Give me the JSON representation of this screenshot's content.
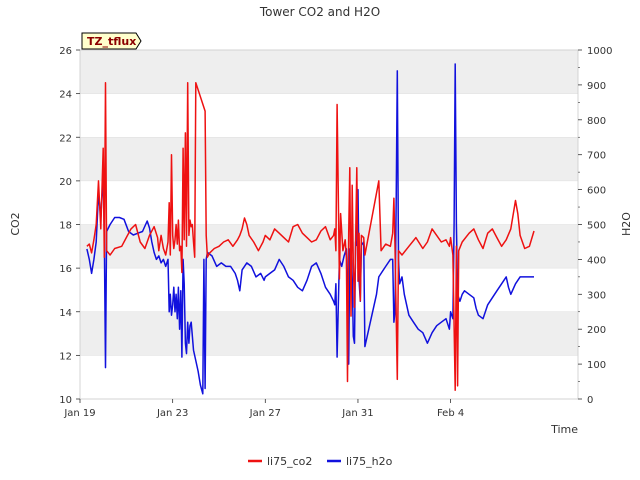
{
  "chart_data": {
    "type": "line",
    "title": "Tower CO2 and H2O",
    "badge": "TZ_tflux",
    "xlabel": "Time",
    "ylabel_left": "CO2",
    "ylabel_right": "H2O",
    "xlim": [
      19,
      40.5
    ],
    "ylim_left": [
      10,
      26
    ],
    "ylim_right": [
      0,
      1000
    ],
    "x_ticks": [
      {
        "value": 19,
        "label": "Jan 19"
      },
      {
        "value": 23,
        "label": "Jan 23"
      },
      {
        "value": 27,
        "label": "Jan 27"
      },
      {
        "value": 31,
        "label": "Jan 31"
      },
      {
        "value": 35,
        "label": "Feb 4"
      }
    ],
    "y_ticks_left": [
      10,
      12,
      14,
      16,
      18,
      20,
      22,
      24,
      26
    ],
    "y_ticks_right": [
      0,
      100,
      200,
      300,
      400,
      500,
      600,
      700,
      800,
      900,
      1000
    ],
    "grid": true,
    "legend_position": "bottom",
    "colors": {
      "co2": "#ee1111",
      "h2o": "#1111dd",
      "band": "#eeeeee",
      "grid": "#dddddd"
    },
    "series": [
      {
        "name": "li75_co2",
        "axis": "left",
        "points": [
          [
            19.3,
            17.0
          ],
          [
            19.4,
            17.1
          ],
          [
            19.5,
            16.7
          ],
          [
            19.6,
            17.3
          ],
          [
            19.7,
            18.0
          ],
          [
            19.8,
            20.0
          ],
          [
            19.9,
            17.8
          ],
          [
            20.0,
            21.5
          ],
          [
            20.05,
            16.5
          ],
          [
            20.1,
            24.5
          ],
          [
            20.15,
            16.8
          ],
          [
            20.3,
            16.6
          ],
          [
            20.5,
            16.9
          ],
          [
            20.8,
            17.0
          ],
          [
            21.0,
            17.4
          ],
          [
            21.2,
            17.8
          ],
          [
            21.4,
            18.0
          ],
          [
            21.6,
            17.2
          ],
          [
            21.8,
            16.9
          ],
          [
            22.0,
            17.5
          ],
          [
            22.2,
            17.9
          ],
          [
            22.35,
            17.4
          ],
          [
            22.4,
            16.8
          ],
          [
            22.5,
            17.5
          ],
          [
            22.6,
            16.9
          ],
          [
            22.7,
            16.6
          ],
          [
            22.8,
            17.2
          ],
          [
            22.85,
            19.0
          ],
          [
            22.9,
            16.6
          ],
          [
            22.95,
            21.2
          ],
          [
            23.0,
            17.5
          ],
          [
            23.05,
            16.9
          ],
          [
            23.1,
            17.3
          ],
          [
            23.15,
            18.0
          ],
          [
            23.2,
            17.1
          ],
          [
            23.25,
            18.2
          ],
          [
            23.3,
            16.8
          ],
          [
            23.35,
            17.0
          ],
          [
            23.4,
            15.8
          ],
          [
            23.45,
            21.5
          ],
          [
            23.5,
            17.3
          ],
          [
            23.55,
            22.2
          ],
          [
            23.6,
            17.0
          ],
          [
            23.65,
            24.5
          ],
          [
            23.7,
            17.5
          ],
          [
            23.75,
            18.2
          ],
          [
            23.8,
            17.9
          ],
          [
            23.85,
            18.0
          ],
          [
            23.9,
            17.2
          ],
          [
            23.95,
            16.5
          ],
          [
            24.0,
            24.5
          ],
          [
            24.4,
            23.2
          ],
          [
            24.45,
            17.5
          ],
          [
            24.5,
            16.5
          ],
          [
            24.6,
            16.7
          ],
          [
            24.8,
            16.9
          ],
          [
            25.0,
            17.0
          ],
          [
            25.2,
            17.2
          ],
          [
            25.4,
            17.3
          ],
          [
            25.6,
            17.0
          ],
          [
            25.8,
            17.3
          ],
          [
            25.9,
            17.5
          ],
          [
            26.0,
            17.8
          ],
          [
            26.1,
            18.3
          ],
          [
            26.2,
            18.0
          ],
          [
            26.3,
            17.5
          ],
          [
            26.5,
            17.2
          ],
          [
            26.7,
            16.8
          ],
          [
            26.9,
            17.2
          ],
          [
            27.0,
            17.5
          ],
          [
            27.2,
            17.3
          ],
          [
            27.4,
            17.8
          ],
          [
            27.6,
            17.6
          ],
          [
            27.8,
            17.4
          ],
          [
            28.0,
            17.2
          ],
          [
            28.2,
            17.9
          ],
          [
            28.4,
            18.0
          ],
          [
            28.6,
            17.6
          ],
          [
            28.8,
            17.4
          ],
          [
            29.0,
            17.2
          ],
          [
            29.2,
            17.3
          ],
          [
            29.4,
            17.7
          ],
          [
            29.6,
            17.9
          ],
          [
            29.8,
            17.3
          ],
          [
            29.95,
            17.5
          ],
          [
            30.0,
            17.8
          ],
          [
            30.05,
            16.8
          ],
          [
            30.1,
            23.5
          ],
          [
            30.2,
            15.5
          ],
          [
            30.25,
            18.5
          ],
          [
            30.35,
            16.8
          ],
          [
            30.45,
            17.3
          ],
          [
            30.5,
            16.5
          ],
          [
            30.55,
            10.8
          ],
          [
            30.6,
            17.6
          ],
          [
            30.65,
            20.6
          ],
          [
            30.7,
            13.8
          ],
          [
            30.75,
            19.8
          ],
          [
            30.8,
            16.2
          ],
          [
            30.85,
            14.2
          ],
          [
            30.9,
            17.2
          ],
          [
            30.95,
            20.6
          ],
          [
            31.0,
            15.4
          ],
          [
            31.05,
            17.6
          ],
          [
            31.1,
            14.5
          ],
          [
            31.15,
            17.5
          ],
          [
            31.25,
            17.4
          ],
          [
            31.3,
            16.6
          ],
          [
            31.9,
            20.0
          ],
          [
            32.0,
            16.8
          ],
          [
            32.2,
            17.1
          ],
          [
            32.4,
            17.0
          ],
          [
            32.5,
            17.6
          ],
          [
            32.55,
            19.2
          ],
          [
            32.6,
            17.0
          ],
          [
            32.7,
            10.9
          ],
          [
            32.75,
            16.8
          ],
          [
            32.9,
            16.6
          ],
          [
            33.2,
            17.0
          ],
          [
            33.5,
            17.4
          ],
          [
            33.8,
            16.9
          ],
          [
            34.0,
            17.2
          ],
          [
            34.2,
            17.8
          ],
          [
            34.4,
            17.5
          ],
          [
            34.6,
            17.2
          ],
          [
            34.8,
            17.3
          ],
          [
            34.95,
            17.0
          ],
          [
            35.0,
            17.4
          ],
          [
            35.1,
            16.6
          ],
          [
            35.2,
            10.4
          ],
          [
            35.25,
            17.0
          ],
          [
            35.3,
            10.6
          ],
          [
            35.35,
            16.8
          ],
          [
            35.5,
            17.2
          ],
          [
            35.8,
            17.6
          ],
          [
            36.0,
            17.8
          ],
          [
            36.2,
            17.3
          ],
          [
            36.4,
            16.9
          ],
          [
            36.6,
            17.6
          ],
          [
            36.8,
            17.8
          ],
          [
            37.0,
            17.4
          ],
          [
            37.2,
            17.0
          ],
          [
            37.4,
            17.3
          ],
          [
            37.6,
            17.8
          ],
          [
            37.8,
            19.1
          ],
          [
            37.9,
            18.5
          ],
          [
            38.0,
            17.5
          ],
          [
            38.2,
            16.9
          ],
          [
            38.4,
            17.0
          ],
          [
            38.6,
            17.7
          ]
        ]
      },
      {
        "name": "li75_h2o",
        "axis": "right",
        "points": [
          [
            19.3,
            430
          ],
          [
            19.4,
            400
          ],
          [
            19.5,
            360
          ],
          [
            19.6,
            400
          ],
          [
            19.7,
            450
          ],
          [
            19.8,
            590
          ],
          [
            19.9,
            520
          ],
          [
            20.0,
            640
          ],
          [
            20.05,
            470
          ],
          [
            20.1,
            90
          ],
          [
            20.15,
            480
          ],
          [
            20.3,
            500
          ],
          [
            20.5,
            520
          ],
          [
            20.7,
            520
          ],
          [
            20.9,
            515
          ],
          [
            21.1,
            480
          ],
          [
            21.3,
            470
          ],
          [
            21.5,
            475
          ],
          [
            21.7,
            480
          ],
          [
            21.9,
            510
          ],
          [
            22.0,
            490
          ],
          [
            22.1,
            450
          ],
          [
            22.2,
            420
          ],
          [
            22.3,
            400
          ],
          [
            22.4,
            410
          ],
          [
            22.5,
            390
          ],
          [
            22.6,
            400
          ],
          [
            22.7,
            380
          ],
          [
            22.8,
            400
          ],
          [
            22.85,
            250
          ],
          [
            22.9,
            300
          ],
          [
            22.95,
            240
          ],
          [
            23.0,
            270
          ],
          [
            23.05,
            320
          ],
          [
            23.1,
            250
          ],
          [
            23.15,
            300
          ],
          [
            23.2,
            230
          ],
          [
            23.25,
            320
          ],
          [
            23.3,
            200
          ],
          [
            23.35,
            310
          ],
          [
            23.4,
            120
          ],
          [
            23.45,
            400
          ],
          [
            23.5,
            330
          ],
          [
            23.55,
            160
          ],
          [
            23.6,
            130
          ],
          [
            23.65,
            220
          ],
          [
            23.7,
            160
          ],
          [
            23.75,
            210
          ],
          [
            23.8,
            220
          ],
          [
            23.9,
            140
          ],
          [
            24.0,
            110
          ],
          [
            24.1,
            80
          ],
          [
            24.2,
            40
          ],
          [
            24.3,
            15
          ],
          [
            24.35,
            400
          ],
          [
            24.4,
            30
          ],
          [
            24.45,
            400
          ],
          [
            24.5,
            420
          ],
          [
            24.7,
            410
          ],
          [
            24.9,
            380
          ],
          [
            25.1,
            390
          ],
          [
            25.3,
            380
          ],
          [
            25.5,
            380
          ],
          [
            25.7,
            360
          ],
          [
            25.8,
            340
          ],
          [
            25.9,
            310
          ],
          [
            26.0,
            370
          ],
          [
            26.2,
            390
          ],
          [
            26.4,
            380
          ],
          [
            26.6,
            350
          ],
          [
            26.8,
            360
          ],
          [
            26.95,
            340
          ],
          [
            27.0,
            350
          ],
          [
            27.2,
            360
          ],
          [
            27.4,
            370
          ],
          [
            27.6,
            400
          ],
          [
            27.8,
            380
          ],
          [
            28.0,
            350
          ],
          [
            28.2,
            340
          ],
          [
            28.4,
            320
          ],
          [
            28.6,
            310
          ],
          [
            28.8,
            340
          ],
          [
            29.0,
            380
          ],
          [
            29.2,
            390
          ],
          [
            29.4,
            360
          ],
          [
            29.6,
            320
          ],
          [
            29.8,
            300
          ],
          [
            29.95,
            280
          ],
          [
            30.0,
            270
          ],
          [
            30.05,
            330
          ],
          [
            30.1,
            120
          ],
          [
            30.2,
            400
          ],
          [
            30.3,
            380
          ],
          [
            30.4,
            410
          ],
          [
            30.5,
            430
          ],
          [
            30.55,
            340
          ],
          [
            30.6,
            100
          ],
          [
            30.65,
            430
          ],
          [
            30.7,
            430
          ],
          [
            30.75,
            350
          ],
          [
            30.8,
            180
          ],
          [
            30.85,
            160
          ],
          [
            30.9,
            450
          ],
          [
            30.95,
            440
          ],
          [
            31.0,
            600
          ],
          [
            31.05,
            340
          ],
          [
            31.1,
            280
          ],
          [
            31.15,
            440
          ],
          [
            31.25,
            450
          ],
          [
            31.3,
            150
          ],
          [
            31.8,
            300
          ],
          [
            31.9,
            350
          ],
          [
            32.0,
            360
          ],
          [
            32.2,
            380
          ],
          [
            32.4,
            400
          ],
          [
            32.5,
            400
          ],
          [
            32.55,
            220
          ],
          [
            32.6,
            250
          ],
          [
            32.65,
            570
          ],
          [
            32.7,
            940
          ],
          [
            32.75,
            400
          ],
          [
            32.8,
            330
          ],
          [
            32.9,
            350
          ],
          [
            33.0,
            300
          ],
          [
            33.2,
            240
          ],
          [
            33.4,
            220
          ],
          [
            33.6,
            200
          ],
          [
            33.8,
            190
          ],
          [
            34.0,
            160
          ],
          [
            34.2,
            190
          ],
          [
            34.4,
            210
          ],
          [
            34.6,
            220
          ],
          [
            34.8,
            230
          ],
          [
            34.95,
            200
          ],
          [
            35.0,
            250
          ],
          [
            35.1,
            230
          ],
          [
            35.15,
            500
          ],
          [
            35.2,
            960
          ],
          [
            35.25,
            500
          ],
          [
            35.3,
            300
          ],
          [
            35.4,
            280
          ],
          [
            35.5,
            300
          ],
          [
            35.6,
            310
          ],
          [
            35.8,
            300
          ],
          [
            36.0,
            290
          ],
          [
            36.1,
            260
          ],
          [
            36.2,
            240
          ],
          [
            36.4,
            230
          ],
          [
            36.6,
            270
          ],
          [
            36.8,
            290
          ],
          [
            37.0,
            310
          ],
          [
            37.2,
            330
          ],
          [
            37.4,
            350
          ],
          [
            37.5,
            320
          ],
          [
            37.6,
            300
          ],
          [
            37.8,
            330
          ],
          [
            38.0,
            350
          ],
          [
            38.2,
            350
          ],
          [
            38.4,
            350
          ],
          [
            38.6,
            350
          ]
        ]
      }
    ]
  }
}
